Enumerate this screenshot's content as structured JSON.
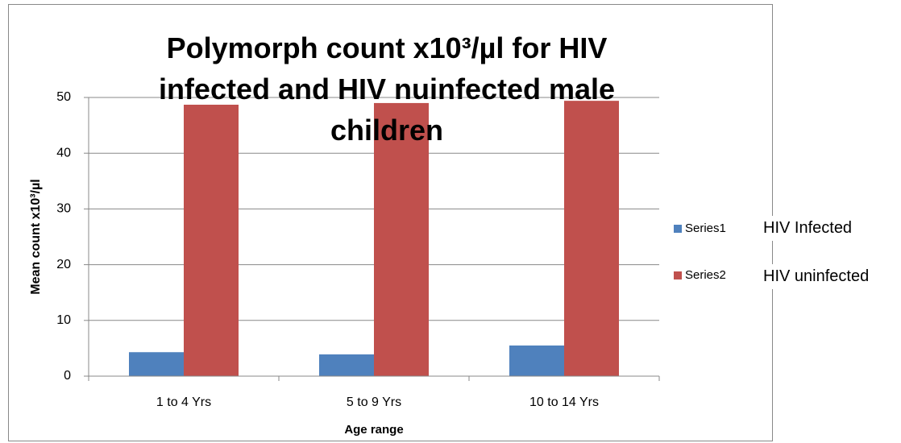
{
  "chart_data": {
    "type": "bar",
    "title": "Polymorph count x10³/µl for HIV infected and HIV nuinfected male children",
    "xlabel": "Age range",
    "ylabel": "Mean count x10³/µl",
    "categories": [
      "1 to 4 Yrs",
      "5 to 9 Yrs",
      "10 to 14 Yrs"
    ],
    "series": [
      {
        "name": "Series1",
        "color": "#4f81bd",
        "values": [
          4.3,
          3.9,
          5.5
        ]
      },
      {
        "name": "Series2",
        "color": "#c0504d",
        "values": [
          48.7,
          49,
          49.4
        ]
      }
    ],
    "annotations": [
      "HIV Infected",
      "HIV uninfected"
    ],
    "ylim": [
      0,
      50
    ],
    "yticks": [
      0,
      10,
      20,
      30,
      40,
      50
    ],
    "grid": true,
    "legend": "right"
  }
}
